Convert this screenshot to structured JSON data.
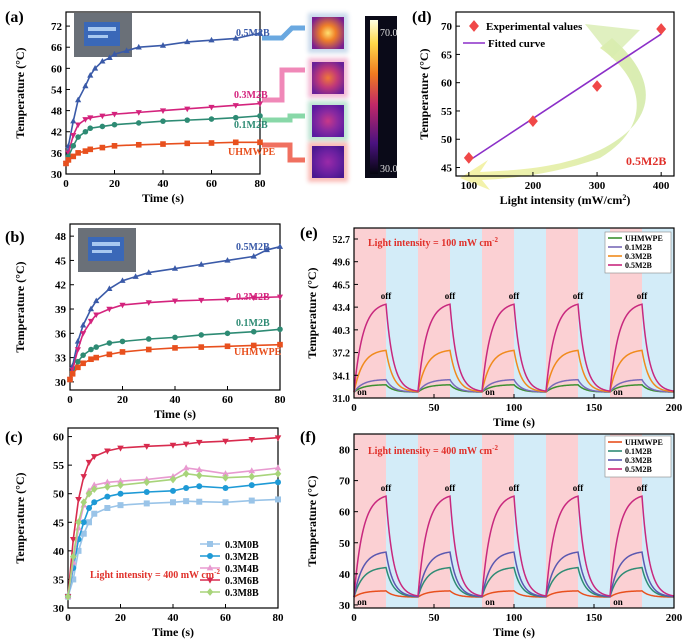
{
  "colors": {
    "uhmwpe": "#e8501e",
    "m01": "#2e8b74",
    "m03": "#d4237d",
    "m05": "#3a5aa8",
    "fit": "#8b2fc8",
    "exp": "#f04848",
    "pink_band": "#fbd0d3",
    "blue_band": "#d3ecf8",
    "c_m0": "#9ac4e8",
    "c_m2": "#1e9ad6",
    "c_m4": "#e89ad0",
    "c_m6": "#d82b4e",
    "c_m8": "#a8d47a"
  },
  "panels": {
    "a": {
      "letter": "(a)",
      "thermal_max": "70.0",
      "thermal_min": "30.0"
    },
    "b": {
      "letter": "(b)"
    },
    "c": {
      "letter": "(c)"
    },
    "d": {
      "letter": "(d)"
    },
    "e": {
      "letter": "(e)"
    },
    "f": {
      "letter": "(f)"
    }
  },
  "chart_data": [
    {
      "id": "a",
      "type": "line",
      "xlabel": "Time (s)",
      "ylabel": "Temperature (°C)",
      "xlim": [
        0,
        80
      ],
      "ylim": [
        30,
        76
      ],
      "xticks": [
        0,
        20,
        40,
        60,
        80
      ],
      "yticks": [
        30,
        36,
        42,
        48,
        54,
        60,
        66,
        72
      ],
      "series": [
        {
          "name": "0.5M2B",
          "color": "#3a5aa8",
          "marker": "tri-up",
          "x": [
            0,
            1,
            3,
            5,
            8,
            10,
            12,
            15,
            18,
            20,
            25,
            30,
            40,
            50,
            60,
            70,
            80
          ],
          "y": [
            33,
            38,
            45,
            51,
            55,
            58,
            60,
            62,
            63,
            64,
            65,
            66,
            66.5,
            67.5,
            68,
            68.5,
            70
          ]
        },
        {
          "name": "0.3M2B",
          "color": "#d4237d",
          "marker": "tri-down",
          "x": [
            0,
            1,
            3,
            5,
            8,
            10,
            15,
            20,
            30,
            40,
            50,
            60,
            70,
            80
          ],
          "y": [
            33,
            36,
            41,
            44,
            45.5,
            46,
            46.5,
            47,
            47.5,
            48,
            48.5,
            49,
            49.5,
            50
          ]
        },
        {
          "name": "0.1M2B",
          "color": "#2e8b74",
          "marker": "circle",
          "x": [
            0,
            1,
            3,
            5,
            8,
            10,
            15,
            20,
            30,
            40,
            50,
            60,
            70,
            80
          ],
          "y": [
            33,
            35,
            38,
            40.5,
            42,
            43,
            43.5,
            44,
            44.5,
            45,
            45.3,
            45.6,
            46,
            46.5
          ]
        },
        {
          "name": "UHMWPE",
          "color": "#e8501e",
          "marker": "square",
          "x": [
            0,
            1,
            3,
            5,
            8,
            10,
            15,
            20,
            30,
            40,
            50,
            60,
            70,
            80
          ],
          "y": [
            33,
            34,
            35,
            36,
            36.5,
            37,
            37.5,
            38,
            38.3,
            38.5,
            38.7,
            38.8,
            39,
            39
          ]
        }
      ]
    },
    {
      "id": "b",
      "type": "line",
      "xlabel": "Time (s)",
      "ylabel": "Temperature (°C)",
      "xlim": [
        0,
        80
      ],
      "ylim": [
        29,
        49.5
      ],
      "xticks": [
        0,
        20,
        40,
        60,
        80
      ],
      "yticks": [
        30,
        33,
        36,
        39,
        42,
        45,
        48
      ],
      "series": [
        {
          "name": "0.5M2B",
          "color": "#3a5aa8",
          "marker": "tri-up",
          "x": [
            0,
            1,
            3,
            5,
            8,
            10,
            15,
            20,
            25,
            30,
            40,
            50,
            60,
            70,
            75,
            80
          ],
          "y": [
            30.3,
            32,
            35,
            37,
            39,
            40,
            41.5,
            42.5,
            43,
            43.5,
            44,
            44.5,
            45,
            45.5,
            46.3,
            46.7
          ]
        },
        {
          "name": "0.3M2B",
          "color": "#d4237d",
          "marker": "tri-down",
          "x": [
            0,
            1,
            3,
            5,
            8,
            10,
            15,
            20,
            30,
            40,
            50,
            60,
            70,
            80
          ],
          "y": [
            30.3,
            31.5,
            34,
            36,
            37.5,
            38.3,
            39,
            39.5,
            39.8,
            40,
            40.1,
            40.2,
            40.4,
            40.5
          ]
        },
        {
          "name": "0.1M2B",
          "color": "#2e8b74",
          "marker": "circle",
          "x": [
            0,
            1,
            3,
            5,
            8,
            10,
            15,
            20,
            30,
            40,
            50,
            60,
            70,
            80
          ],
          "y": [
            30.3,
            31,
            32.5,
            33.3,
            34,
            34.3,
            34.8,
            35,
            35.3,
            35.5,
            35.8,
            36,
            36.2,
            36.5
          ]
        },
        {
          "name": "UHMWPE",
          "color": "#e8501e",
          "marker": "square",
          "x": [
            0,
            1,
            3,
            5,
            8,
            10,
            15,
            20,
            30,
            40,
            50,
            60,
            70,
            80
          ],
          "y": [
            30.3,
            31,
            31.8,
            32.3,
            32.8,
            33,
            33.4,
            33.7,
            34,
            34.2,
            34.3,
            34.4,
            34.5,
            34.6
          ]
        }
      ]
    },
    {
      "id": "c",
      "type": "line",
      "xlabel": "Time (s)",
      "ylabel": "Temperature (°C)",
      "xlim": [
        0,
        80
      ],
      "ylim": [
        30,
        61.5
      ],
      "xticks": [
        0,
        20,
        40,
        60,
        80
      ],
      "yticks": [
        30,
        35,
        40,
        45,
        50,
        55,
        60
      ],
      "annotation": "Light intensity = 400 mW cm",
      "annotation_sup": "-2",
      "series": [
        {
          "name": "0.3M0B",
          "color": "#9ac4e8",
          "marker": "square",
          "x": [
            0,
            2,
            4,
            6,
            8,
            10,
            15,
            20,
            30,
            40,
            45,
            50,
            60,
            70,
            80
          ],
          "y": [
            32,
            35,
            40,
            43,
            45,
            46.5,
            47.5,
            48,
            48.3,
            48.5,
            48.7,
            48.6,
            48.5,
            48.8,
            49
          ]
        },
        {
          "name": "0.3M2B",
          "color": "#1e9ad6",
          "marker": "circle",
          "x": [
            0,
            2,
            4,
            6,
            8,
            10,
            15,
            20,
            30,
            40,
            45,
            50,
            60,
            70,
            80
          ],
          "y": [
            32,
            37,
            42,
            45,
            47.5,
            48.5,
            49.5,
            50,
            50.3,
            50.5,
            51,
            51.3,
            51,
            51.5,
            52
          ]
        },
        {
          "name": "0.3M4B",
          "color": "#e89ad0",
          "marker": "tri-up",
          "x": [
            0,
            2,
            4,
            6,
            8,
            10,
            15,
            20,
            30,
            40,
            45,
            50,
            60,
            70,
            80
          ],
          "y": [
            32,
            38,
            44,
            48,
            50.5,
            51.5,
            52,
            52.2,
            52.5,
            53,
            54.5,
            54.2,
            53.5,
            54,
            54.5
          ]
        },
        {
          "name": "0.3M6B",
          "color": "#d82b4e",
          "marker": "tri-down",
          "x": [
            0,
            2,
            4,
            6,
            8,
            10,
            15,
            20,
            30,
            40,
            45,
            50,
            60,
            70,
            80
          ],
          "y": [
            32,
            42,
            49,
            53,
            55.5,
            56.5,
            57.5,
            58,
            58.3,
            58.5,
            58.7,
            59,
            59.2,
            59.5,
            59.8
          ]
        },
        {
          "name": "0.3M8B",
          "color": "#a8d47a",
          "marker": "diamond",
          "x": [
            0,
            2,
            4,
            6,
            8,
            10,
            15,
            20,
            30,
            40,
            45,
            50,
            60,
            70,
            80
          ],
          "y": [
            32,
            39,
            45,
            48.5,
            50,
            50.8,
            51.2,
            51.5,
            52,
            52.5,
            53.5,
            53.2,
            52.8,
            53,
            53.5
          ]
        }
      ]
    },
    {
      "id": "d",
      "type": "scatter",
      "xlabel": "Light intensity (mW/cm",
      "xlabel_sup": "2",
      "xlabel_end": ")",
      "ylabel": "Temperature (°C)",
      "xlim": [
        80,
        420
      ],
      "ylim": [
        43.5,
        72.5
      ],
      "xticks": [
        100,
        200,
        300,
        400
      ],
      "yticks": [
        45,
        50,
        55,
        60,
        65,
        70
      ],
      "annotation": "0.5M2B",
      "points": {
        "name": "Experimental values",
        "x": [
          100,
          200,
          300,
          400
        ],
        "y": [
          46.7,
          53.2,
          59.4,
          69.5
        ]
      },
      "fit": {
        "name": "Fitted curve",
        "x": [
          100,
          400
        ],
        "y": [
          46.2,
          68.6
        ]
      }
    },
    {
      "id": "e",
      "type": "line",
      "xlabel": "Time (s)",
      "ylabel": "Temperature (°C)",
      "xlim": [
        0,
        200
      ],
      "ylim": [
        31,
        54.2
      ],
      "xticks": [
        0,
        50,
        100,
        150,
        200
      ],
      "yticks": [
        31.0,
        34.1,
        37.2,
        40.3,
        43.4,
        46.5,
        49.6,
        52.7
      ],
      "ytick_labels": [
        "31.0",
        "34.1",
        "37.2",
        "40.3",
        "43.4",
        "46.5",
        "49.6",
        "52.7"
      ],
      "annotation": "Light intensity = 100 mW cm",
      "annotation_sup": "-2",
      "cycles": 5,
      "period": 40,
      "on_duration": 20,
      "on_label": "on",
      "off_label": "off",
      "series": [
        {
          "name": "UHMWPE",
          "color": "#3c8f30",
          "base": 31.8,
          "peak": 32.8
        },
        {
          "name": "0.1M2B",
          "color": "#7a6ab8",
          "base": 31.8,
          "peak": 33.5
        },
        {
          "name": "0.3M2B",
          "color": "#f08a1c",
          "base": 31.8,
          "peak": 37.5
        },
        {
          "name": "0.5M2B",
          "color": "#c8287e",
          "base": 31.8,
          "peak": 43.8
        }
      ]
    },
    {
      "id": "f",
      "type": "line",
      "xlabel": "Time (s)",
      "ylabel": "Temperature (°C)",
      "xlim": [
        0,
        200
      ],
      "ylim": [
        29,
        85
      ],
      "xticks": [
        0,
        50,
        100,
        150,
        200
      ],
      "yticks": [
        30,
        40,
        50,
        60,
        70,
        80
      ],
      "annotation": "Light intensity = 400 mW cm",
      "annotation_sup": "-2",
      "cycles": 5,
      "period": 40,
      "on_duration": 20,
      "on_label": "on",
      "off_label": "off",
      "series": [
        {
          "name": "UHMWPE",
          "color": "#e8501e",
          "base": 32.5,
          "peak": 34.5
        },
        {
          "name": "0.1M2B",
          "color": "#2e8b74",
          "base": 32.5,
          "peak": 42
        },
        {
          "name": "0.3M2B",
          "color": "#5a58b0",
          "base": 32.5,
          "peak": 47
        },
        {
          "name": "0.5M2B",
          "color": "#c8287e",
          "base": 32.5,
          "peak": 65
        }
      ]
    }
  ]
}
